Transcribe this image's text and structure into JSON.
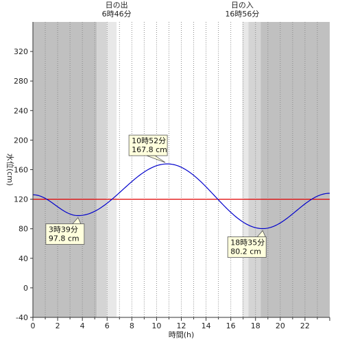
{
  "chart_data": {
    "type": "line",
    "title": "",
    "xlabel": "時間(h)",
    "ylabel": "水位(cm)",
    "xlim": [
      0,
      24
    ],
    "ylim": [
      -40,
      360
    ],
    "x_ticks": [
      0,
      2,
      4,
      6,
      8,
      10,
      12,
      14,
      16,
      18,
      20,
      22
    ],
    "y_ticks": [
      -40,
      0,
      40,
      80,
      120,
      160,
      200,
      240,
      280,
      320
    ],
    "reference_line": {
      "value": 120,
      "color": "#e00000"
    },
    "series": [
      {
        "color": "#0000cc",
        "x": [
          0,
          3.65,
          10.87,
          18.58,
          24
        ],
        "y": [
          126,
          97.8,
          167.8,
          80.2,
          128
        ]
      }
    ],
    "sunrise": {
      "label": "日の出",
      "time_label": "6時46分",
      "hour": 6.77
    },
    "sunset": {
      "label": "日の入",
      "time_label": "16時56分",
      "hour": 16.93
    },
    "annotations": [
      {
        "time_label": "3時39分",
        "value_label": "97.8 cm",
        "x": 3.65,
        "y": 97.8,
        "placement": "below"
      },
      {
        "time_label": "10時52分",
        "value_label": "167.8 cm",
        "x": 10.87,
        "y": 167.8,
        "placement": "above"
      },
      {
        "time_label": "18時35分",
        "value_label": "80.2 cm",
        "x": 18.58,
        "y": 80.2,
        "placement": "below"
      }
    ],
    "colors": {
      "night": "#c0c0c0",
      "twilight_dark": "#d4d4d4",
      "twilight_light": "#e8e8e8",
      "day": "#ffffff",
      "annotation_fill": "#ffffdd"
    }
  }
}
